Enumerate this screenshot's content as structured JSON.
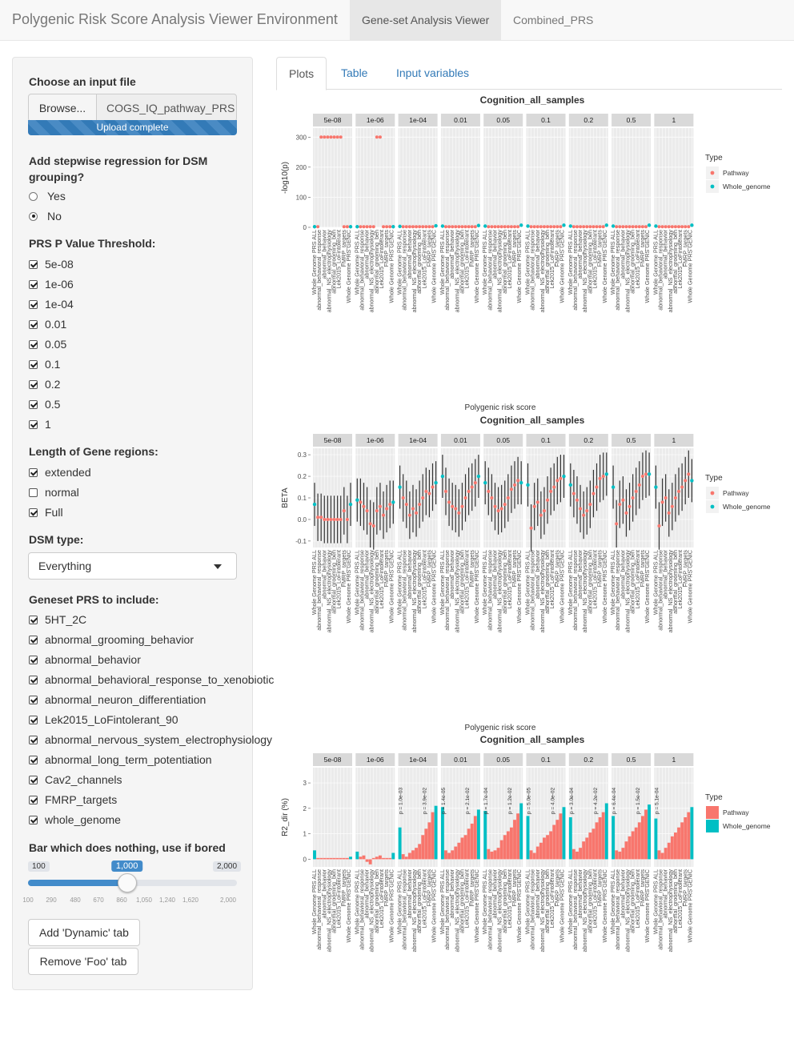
{
  "nav": {
    "brand": "Polygenic Risk Score Analysis Viewer Environment",
    "tabs": [
      "Gene-set Analysis Viewer",
      "Combined_PRS"
    ]
  },
  "sidebar": {
    "file": {
      "label": "Choose an input file",
      "browse": "Browse...",
      "filename": "COGS_IQ_pathway_PRS",
      "status": "Upload complete",
      "progress": 1.0
    },
    "stepwise": {
      "label": "Add stepwise regression for DSM grouping?",
      "options": [
        "Yes",
        "No"
      ],
      "selected": "No"
    },
    "thresholds": {
      "label": "PRS P Value Threshold:",
      "items": [
        "5e-08",
        "1e-06",
        "1e-04",
        "0.01",
        "0.05",
        "0.1",
        "0.2",
        "0.5",
        "1"
      ],
      "checked": [
        true,
        true,
        true,
        true,
        true,
        true,
        true,
        true,
        true
      ]
    },
    "gene_regions": {
      "label": "Length of Gene regions:",
      "items": [
        "extended",
        "normal",
        "Full"
      ],
      "checked": [
        true,
        false,
        true
      ]
    },
    "dsm": {
      "label": "DSM type:",
      "value": "Everything"
    },
    "genesets": {
      "label": "Geneset PRS to include:",
      "items": [
        "5HT_2C",
        "abnormal_grooming_behavior",
        "abnormal_behavior",
        "abnormal_behavioral_response_to_xenobiotic",
        "abnormal_neuron_differentiation",
        "Lek2015_LoFintolerant_90",
        "abnormal_nervous_system_electrophysiology",
        "abnormal_long_term_potentiation",
        "Cav2_channels",
        "FMRP_targets",
        "whole_genome"
      ],
      "checked": [
        true,
        true,
        true,
        true,
        true,
        true,
        true,
        true,
        true,
        true,
        true
      ]
    },
    "slider": {
      "label": "Bar which does nothing, use if bored",
      "min": "100",
      "max": "2,000",
      "value": "1,000",
      "value_num": 1000,
      "min_num": 100,
      "max_num": 2000,
      "ticks": [
        "100",
        "290",
        "480",
        "670",
        "860",
        "1,050",
        "1,240",
        "1,620",
        "2,000"
      ]
    },
    "buttons": {
      "add": "Add 'Dynamic' tab",
      "remove": "Remove 'Foo' tab"
    }
  },
  "main": {
    "tabs": [
      "Plots",
      "Table",
      "Input variables"
    ]
  },
  "colors": {
    "pathway": "#F8766D",
    "whole_genome": "#00BFC4",
    "panel": "#EBEBEB",
    "strip": "#D9D9D9",
    "accent": "#337ab7"
  },
  "chart_data": [
    {
      "type": "scatter",
      "title": "Cognition_all_samples",
      "xlabel": "Polygenic risk score",
      "ylabel": "-log10(p)",
      "ylim": [
        0,
        330
      ],
      "yticks": [
        "0",
        "100",
        "200",
        "300"
      ],
      "legend_title": "Type",
      "legend": [
        "Pathway",
        "Whole_genome"
      ],
      "legend_position": "right",
      "facets": [
        "5e-08",
        "1e-06",
        "1e-04",
        "0.01",
        "0.05",
        "0.1",
        "0.2",
        "0.5",
        "1"
      ],
      "categories": [
        "Whole Genome PRS ALL",
        "abnormal_behavior",
        "abnormal_behavioral_response",
        "abnormal_grooming_behavior",
        "abnormal_NS_electrophysiology",
        "abnormal_long_term_potentiation",
        "abnormal_neuron_differentiation",
        "Lek2015_LoFintolerant_90",
        "FMRP_targets",
        "5HT_2C",
        "Cav2_channels",
        "Whole Genome PRS GENIC"
      ],
      "series": [
        {
          "name": "Pathway",
          "values": [
            [
              null,
              2,
              300,
              300,
              300,
              300,
              300,
              300,
              300,
              2,
              2,
              null
            ],
            [
              null,
              2,
              2,
              2,
              2,
              2,
              300,
              300,
              2,
              2,
              2,
              null
            ],
            [
              null,
              2,
              2,
              2,
              2,
              2,
              2,
              2,
              2,
              2,
              2,
              null
            ],
            [
              null,
              2,
              2,
              2,
              2,
              2,
              2,
              2,
              2,
              2,
              2,
              null
            ],
            [
              null,
              2,
              2,
              2,
              2,
              2,
              2,
              2,
              2,
              2,
              2,
              null
            ],
            [
              null,
              2,
              2,
              2,
              2,
              2,
              2,
              2,
              2,
              2,
              2,
              null
            ],
            [
              null,
              2,
              2,
              2,
              2,
              2,
              2,
              2,
              2,
              2,
              2,
              null
            ],
            [
              null,
              2,
              2,
              2,
              2,
              2,
              2,
              2,
              2,
              2,
              2,
              null
            ],
            [
              null,
              2,
              2,
              2,
              2,
              2,
              2,
              2,
              2,
              2,
              2,
              null
            ]
          ]
        },
        {
          "name": "Whole_genome",
          "values": [
            [
              2,
              2
            ],
            [
              2,
              2
            ],
            [
              3,
              5
            ],
            [
              4,
              6
            ],
            [
              4,
              7
            ],
            [
              4,
              7
            ],
            [
              4,
              7
            ],
            [
              4,
              7
            ],
            [
              4,
              7
            ]
          ]
        }
      ]
    },
    {
      "type": "scatter",
      "title": "Cognition_all_samples",
      "xlabel": "Polygenic risk score",
      "ylabel": "BETA",
      "ylim": [
        -0.13,
        0.33
      ],
      "yticks": [
        "-0.1",
        "0.0",
        "0.1",
        "0.2",
        "0.3"
      ],
      "legend_title": "Type",
      "legend": [
        "Pathway",
        "Whole_genome"
      ],
      "legend_position": "right",
      "facets": [
        "5e-08",
        "1e-06",
        "1e-04",
        "0.01",
        "0.05",
        "0.1",
        "0.2",
        "0.5",
        "1"
      ],
      "series": [
        {
          "name": "Pathway",
          "values": [
            [
              null,
              0.01,
              0.01,
              0.0,
              0.0,
              0.0,
              0.0,
              0.0,
              0.0,
              0.04,
              0.0,
              null
            ],
            [
              null,
              0.08,
              0.06,
              0.04,
              -0.02,
              -0.03,
              0.04,
              0.06,
              0.02,
              0.05,
              0.07,
              null
            ],
            [
              null,
              0.1,
              0.07,
              0.02,
              0.05,
              0.03,
              0.07,
              0.1,
              0.13,
              0.12,
              0.15,
              null
            ],
            [
              null,
              0.13,
              0.08,
              0.06,
              0.05,
              0.03,
              0.06,
              0.1,
              0.13,
              0.15,
              0.17,
              null
            ],
            [
              null,
              0.13,
              0.1,
              0.06,
              0.04,
              0.05,
              0.07,
              0.1,
              0.14,
              0.16,
              0.18,
              null
            ],
            [
              null,
              -0.04,
              0.06,
              0.08,
              0.02,
              0.04,
              0.09,
              0.13,
              0.15,
              0.18,
              0.19,
              null
            ],
            [
              null,
              0.12,
              0.09,
              0.05,
              0.02,
              0.04,
              0.07,
              0.12,
              0.15,
              0.19,
              0.2,
              null
            ],
            [
              null,
              -0.02,
              0.07,
              0.09,
              0.03,
              0.06,
              0.1,
              0.13,
              0.16,
              0.2,
              0.21,
              null
            ],
            [
              null,
              -0.03,
              0.08,
              0.1,
              0.03,
              0.06,
              0.1,
              0.13,
              0.15,
              0.18,
              0.21,
              null
            ]
          ]
        },
        {
          "name": "Whole_genome",
          "values": [
            [
              0.07,
              0.07
            ],
            [
              0.09,
              0.08
            ],
            [
              0.15,
              0.17
            ],
            [
              0.2,
              0.2
            ],
            [
              0.17,
              0.17
            ],
            [
              0.16,
              0.2
            ],
            [
              0.16,
              0.21
            ],
            [
              0.15,
              0.21
            ],
            [
              0.15,
              0.18
            ]
          ]
        }
      ]
    },
    {
      "type": "bar",
      "title": "Cognition_all_samples",
      "xlabel": "Polygenic risk score",
      "ylabel": "R2_dir (%)",
      "ylim": [
        -0.3,
        3.6
      ],
      "yticks": [
        "0",
        "1",
        "2",
        "3"
      ],
      "legend_title": "Type",
      "legend": [
        "Pathway",
        "Whole_genome"
      ],
      "legend_position": "right",
      "facets": [
        "5e-08",
        "1e-06",
        "1e-04",
        "0.01",
        "0.05",
        "0.1",
        "0.2",
        "0.5",
        "1"
      ],
      "series": [
        {
          "name": "Pathway",
          "values": [
            [
              null,
              0.05,
              0.05,
              0.05,
              0.05,
              0.05,
              0.05,
              0.05,
              0.05,
              0.05,
              0.05,
              null
            ],
            [
              null,
              0.1,
              0.15,
              -0.1,
              -0.2,
              0.05,
              0.1,
              0.15,
              0.05,
              0.05,
              0.05,
              null
            ],
            [
              null,
              0.2,
              0.1,
              0.25,
              0.35,
              0.45,
              0.6,
              0.95,
              1.2,
              1.45,
              1.85,
              null
            ],
            [
              null,
              0.35,
              0.25,
              0.35,
              0.5,
              0.65,
              0.85,
              0.95,
              1.2,
              1.4,
              1.7,
              null
            ],
            [
              null,
              0.4,
              0.3,
              0.35,
              0.45,
              0.75,
              0.95,
              1.1,
              1.25,
              1.55,
              1.8,
              null
            ],
            [
              null,
              0.35,
              0.25,
              0.5,
              0.65,
              0.85,
              0.95,
              1.1,
              1.35,
              1.55,
              1.8,
              null
            ],
            [
              null,
              0.4,
              0.3,
              0.45,
              0.7,
              0.85,
              1.05,
              1.2,
              1.45,
              1.65,
              1.85,
              null
            ],
            [
              null,
              0.35,
              0.3,
              0.45,
              0.7,
              0.9,
              1.1,
              1.25,
              1.45,
              1.7,
              1.95,
              null
            ],
            [
              null,
              0.35,
              0.25,
              0.45,
              0.65,
              0.9,
              1.05,
              1.25,
              1.45,
              1.65,
              1.85,
              null
            ]
          ]
        },
        {
          "name": "Whole_genome",
          "values": [
            [
              0.35,
              0.1
            ],
            [
              0.3,
              0.25
            ],
            [
              1.25,
              2.1
            ],
            [
              2.05,
              1.95
            ],
            [
              1.9,
              2.2
            ],
            [
              1.7,
              2.05
            ],
            [
              1.65,
              2.2
            ],
            [
              1.7,
              2.15
            ],
            [
              1.6,
              2.05
            ]
          ]
        }
      ],
      "annotations": [
        "p = 1.0e-03",
        "p = 1.4e-05",
        "p = 1.7e-04",
        "p = 5.0e-05",
        "p = 3.0e-04",
        "p = 6.4e-04",
        "p = 5.1e-04",
        "p = 3.9e-02",
        "p = 2.1e-02",
        "p = 1.2e-02",
        "p = 4.0e-02",
        "p = 4.2e-02",
        "p = 1.5e-02"
      ]
    }
  ]
}
